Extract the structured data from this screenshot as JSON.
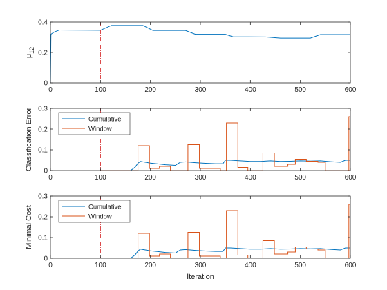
{
  "chart_data": [
    {
      "type": "line",
      "xlabel": "",
      "ylabel": "μ12",
      "ylabel_main": "μ",
      "ylabel_sub": "12",
      "xlim": [
        0,
        600
      ],
      "ylim": [
        0,
        0.4
      ],
      "xticks": [
        0,
        100,
        200,
        300,
        400,
        500,
        600
      ],
      "yticks": [
        0,
        0.2,
        0.4
      ],
      "ytick_labels": [
        "0",
        "0.2",
        "0.4"
      ],
      "vline_x": 100,
      "vline_color": "#d62728",
      "legend": null,
      "series": [
        {
          "color": "#0072bd",
          "x": [
            0,
            1,
            3,
            8,
            18,
            40,
            100,
            104,
            122,
            185,
            205,
            270,
            290,
            350,
            365,
            430,
            460,
            520,
            540,
            600
          ],
          "y": [
            0,
            0.32,
            0.325,
            0.335,
            0.348,
            0.347,
            0.346,
            0.352,
            0.378,
            0.378,
            0.345,
            0.345,
            0.32,
            0.32,
            0.304,
            0.303,
            0.295,
            0.295,
            0.318,
            0.318
          ]
        }
      ]
    },
    {
      "type": "line",
      "xlabel": "",
      "ylabel": "Classification Error",
      "xlim": [
        0,
        600
      ],
      "ylim": [
        0,
        0.3
      ],
      "xticks": [
        0,
        100,
        200,
        300,
        400,
        500,
        600
      ],
      "yticks": [
        0,
        0.1,
        0.2,
        0.3
      ],
      "ytick_labels": [
        "0",
        "0.1",
        "0.2",
        "0.3"
      ],
      "vline_x": 100,
      "vline_color": "#d62728",
      "legend": "top-left",
      "series": [
        {
          "name": "Cumulative",
          "color": "#0072bd",
          "x": [
            100,
            160,
            165,
            170,
            175,
            180,
            190,
            200,
            215,
            230,
            250,
            255,
            260,
            270,
            290,
            310,
            330,
            345,
            350,
            360,
            380,
            400,
            420,
            440,
            460,
            480,
            500,
            520,
            540,
            560,
            580,
            590,
            600
          ],
          "y": [
            0,
            0,
            0.008,
            0.018,
            0.035,
            0.044,
            0.04,
            0.036,
            0.032,
            0.028,
            0.025,
            0.033,
            0.04,
            0.042,
            0.038,
            0.035,
            0.033,
            0.033,
            0.05,
            0.05,
            0.047,
            0.044,
            0.044,
            0.047,
            0.044,
            0.045,
            0.047,
            0.046,
            0.047,
            0.043,
            0.04,
            0.05,
            0.05
          ]
        },
        {
          "name": "Window",
          "color": "#d95319",
          "x": [
            100,
            175,
            175,
            198,
            198,
            218,
            218,
            240,
            240,
            275,
            275,
            298,
            298,
            340,
            340,
            352,
            352,
            375,
            375,
            395,
            395,
            425,
            425,
            448,
            448,
            475,
            475,
            490,
            490,
            512,
            512,
            535,
            535,
            550,
            550,
            597,
            597,
            600
          ],
          "y": [
            0,
            0,
            0.12,
            0.12,
            0.01,
            0.01,
            0.02,
            0.02,
            0,
            0,
            0.125,
            0.125,
            0.01,
            0.01,
            0,
            0,
            0.23,
            0.23,
            0.015,
            0.015,
            0,
            0,
            0.085,
            0.085,
            0.02,
            0.02,
            0.03,
            0.03,
            0.055,
            0.055,
            0.045,
            0.045,
            0.04,
            0.04,
            0,
            0,
            0.26,
            0.26
          ]
        }
      ]
    },
    {
      "type": "line",
      "xlabel": "Iteration",
      "ylabel": "Minimal Cost",
      "xlim": [
        0,
        600
      ],
      "ylim": [
        0,
        0.3
      ],
      "xticks": [
        0,
        100,
        200,
        300,
        400,
        500,
        600
      ],
      "yticks": [
        0,
        0.1,
        0.2,
        0.3
      ],
      "ytick_labels": [
        "0",
        "0.1",
        "0.2",
        "0.3"
      ],
      "vline_x": 100,
      "vline_color": "#d62728",
      "legend": "top-left",
      "series": [
        {
          "name": "Cumulative",
          "color": "#0072bd",
          "x": [
            100,
            160,
            165,
            170,
            175,
            180,
            190,
            200,
            215,
            230,
            250,
            255,
            260,
            270,
            290,
            310,
            330,
            345,
            350,
            360,
            380,
            400,
            420,
            440,
            460,
            480,
            500,
            520,
            540,
            560,
            580,
            590,
            600
          ],
          "y": [
            0,
            0,
            0.008,
            0.018,
            0.035,
            0.044,
            0.04,
            0.036,
            0.032,
            0.028,
            0.025,
            0.033,
            0.04,
            0.042,
            0.038,
            0.035,
            0.033,
            0.033,
            0.05,
            0.05,
            0.047,
            0.044,
            0.044,
            0.047,
            0.044,
            0.045,
            0.047,
            0.046,
            0.047,
            0.043,
            0.04,
            0.05,
            0.05
          ]
        },
        {
          "name": "Window",
          "color": "#d95319",
          "x": [
            100,
            175,
            175,
            198,
            198,
            218,
            218,
            240,
            240,
            275,
            275,
            298,
            298,
            340,
            340,
            352,
            352,
            375,
            375,
            395,
            395,
            425,
            425,
            448,
            448,
            475,
            475,
            490,
            490,
            512,
            512,
            535,
            535,
            550,
            550,
            597,
            597,
            600
          ],
          "y": [
            0,
            0,
            0.12,
            0.12,
            0.01,
            0.01,
            0.02,
            0.02,
            0,
            0,
            0.125,
            0.125,
            0.01,
            0.01,
            0,
            0,
            0.23,
            0.23,
            0.015,
            0.015,
            0,
            0,
            0.085,
            0.085,
            0.02,
            0.02,
            0.03,
            0.03,
            0.055,
            0.055,
            0.045,
            0.045,
            0.04,
            0.04,
            0,
            0,
            0.26,
            0.26
          ]
        }
      ]
    }
  ]
}
